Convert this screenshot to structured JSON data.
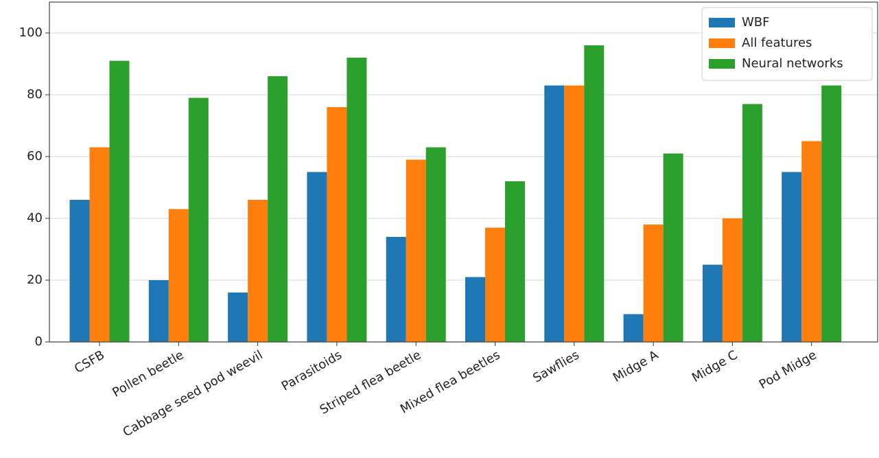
{
  "chart_data": {
    "type": "bar",
    "categories": [
      "CSFB",
      "Pollen beetle",
      "Cabbage seed pod weevil",
      "Parasitoids",
      "Striped flea beetle",
      "Mixed flea beetles",
      "Sawflies",
      "Midge A",
      "Midge C",
      "Pod Midge"
    ],
    "series": [
      {
        "name": "WBF",
        "color": "#1f77b4",
        "values": [
          46,
          20,
          16,
          55,
          34,
          21,
          83,
          9,
          25,
          55
        ]
      },
      {
        "name": "All features",
        "color": "#ff7f0e",
        "values": [
          63,
          43,
          46,
          76,
          59,
          37,
          83,
          38,
          40,
          65
        ]
      },
      {
        "name": "Neural networks",
        "color": "#2ca02c",
        "values": [
          91,
          79,
          86,
          92,
          63,
          52,
          96,
          61,
          77,
          83
        ]
      }
    ],
    "ylim": [
      0,
      110
    ],
    "yticks": [
      0,
      20,
      40,
      60,
      80,
      100
    ],
    "grid": true,
    "legend": "upper right"
  }
}
